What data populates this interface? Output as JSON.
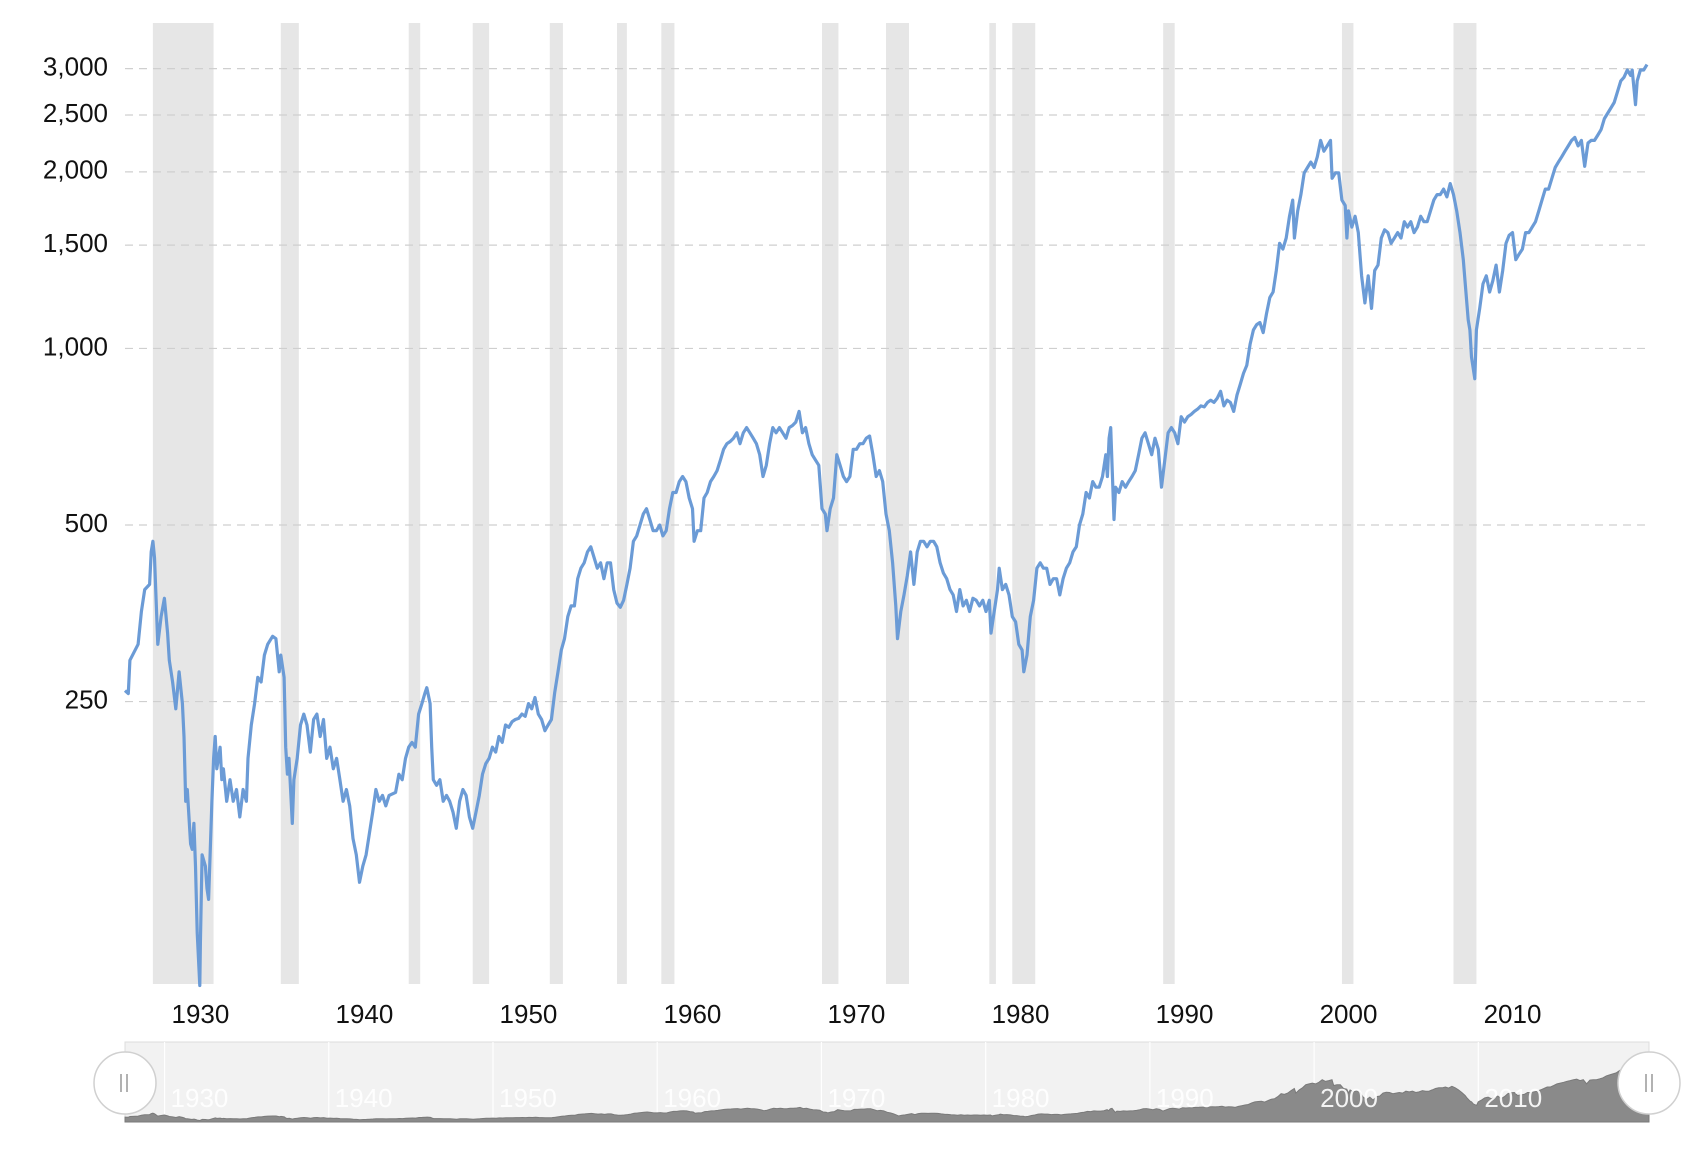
{
  "chart_data": {
    "type": "line",
    "log_scale": true,
    "grid": true,
    "color": "#6b9bd6",
    "xlim": [
      1925.4,
      2018.2
    ],
    "xticks": [
      1930,
      1940,
      1950,
      1960,
      1970,
      1980,
      1990,
      2000,
      2010
    ],
    "ylim": [
      82.5,
      3317
    ],
    "yticks": [
      250,
      500,
      {
        "value": 1000,
        "label": "1,000"
      },
      {
        "value": 1500,
        "label": "1,500"
      },
      {
        "value": 2000,
        "label": "2,000"
      },
      {
        "value": 2500,
        "label": "2,500"
      },
      {
        "value": 3000,
        "label": "3,000"
      }
    ],
    "bands": [
      [
        1927.1,
        1930.8
      ],
      [
        1934.9,
        1936.0
      ],
      [
        1942.7,
        1943.4
      ],
      [
        1946.6,
        1947.6
      ],
      [
        1951.3,
        1952.1
      ],
      [
        1955.4,
        1956.0
      ],
      [
        1958.1,
        1958.9
      ],
      [
        1967.9,
        1968.9
      ],
      [
        1971.8,
        1973.2
      ],
      [
        1978.1,
        1978.5
      ],
      [
        1979.5,
        1980.9
      ],
      [
        1988.7,
        1989.4
      ],
      [
        1999.6,
        2000.3
      ],
      [
        2006.4,
        2007.8
      ]
    ],
    "x": [
      1925.4,
      1925.6,
      1925.7,
      1926.2,
      1926.4,
      1926.6,
      1926.9,
      1927.0,
      1927.1,
      1927.2,
      1927.4,
      1927.6,
      1927.8,
      1928.0,
      1928.1,
      1928.3,
      1928.5,
      1928.7,
      1928.9,
      1929.0,
      1929.1,
      1929.2,
      1929.4,
      1929.5,
      1929.6,
      1929.7,
      1929.8,
      1929.96,
      1930.0,
      1930.1,
      1930.3,
      1930.4,
      1930.5,
      1930.7,
      1930.8,
      1930.9,
      1931.0,
      1931.2,
      1931.3,
      1931.4,
      1931.6,
      1931.8,
      1932.0,
      1932.2,
      1932.4,
      1932.6,
      1932.8,
      1932.9,
      1933.1,
      1933.3,
      1933.5,
      1933.7,
      1933.9,
      1934.1,
      1934.4,
      1934.6,
      1934.8,
      1934.9,
      1935.1,
      1935.2,
      1935.3,
      1935.4,
      1935.6,
      1935.7,
      1935.9,
      1936.1,
      1936.3,
      1936.5,
      1936.7,
      1936.9,
      1937.1,
      1937.3,
      1937.5,
      1937.7,
      1937.9,
      1938.1,
      1938.3,
      1938.5,
      1938.7,
      1938.9,
      1939.1,
      1939.3,
      1939.5,
      1939.7,
      1939.9,
      1940.1,
      1940.3,
      1940.5,
      1940.7,
      1940.9,
      1941.1,
      1941.3,
      1941.5,
      1941.9,
      1942.1,
      1942.3,
      1942.5,
      1942.7,
      1942.9,
      1943.1,
      1943.3,
      1943.5,
      1943.7,
      1943.8,
      1944.0,
      1944.1,
      1944.2,
      1944.4,
      1944.6,
      1944.8,
      1945.0,
      1945.2,
      1945.4,
      1945.6,
      1945.8,
      1946.0,
      1946.2,
      1946.4,
      1946.6,
      1946.8,
      1947.0,
      1947.2,
      1947.4,
      1947.6,
      1947.8,
      1948.0,
      1948.2,
      1948.4,
      1948.6,
      1948.8,
      1949.0,
      1949.2,
      1949.4,
      1949.6,
      1949.8,
      1950.0,
      1950.2,
      1950.4,
      1950.6,
      1950.8,
      1951.0,
      1951.2,
      1951.4,
      1951.6,
      1951.8,
      1952.0,
      1952.2,
      1952.4,
      1952.6,
      1952.8,
      1953.0,
      1953.2,
      1953.4,
      1953.6,
      1953.8,
      1954.0,
      1954.2,
      1954.4,
      1954.6,
      1954.8,
      1955.0,
      1955.2,
      1955.4,
      1955.6,
      1955.8,
      1956.0,
      1956.2,
      1956.4,
      1956.6,
      1956.8,
      1957.0,
      1957.2,
      1957.4,
      1957.6,
      1957.8,
      1958.0,
      1958.2,
      1958.4,
      1958.6,
      1958.8,
      1959.0,
      1959.2,
      1959.4,
      1959.6,
      1959.8,
      1960.0,
      1960.1,
      1960.3,
      1960.5,
      1960.7,
      1960.9,
      1961.1,
      1961.3,
      1961.5,
      1961.7,
      1961.9,
      1962.1,
      1962.3,
      1962.5,
      1962.7,
      1962.9,
      1963.1,
      1963.3,
      1963.5,
      1963.7,
      1963.9,
      1964.1,
      1964.3,
      1964.5,
      1964.7,
      1964.9,
      1965.1,
      1965.3,
      1965.5,
      1965.7,
      1965.9,
      1966.1,
      1966.3,
      1966.5,
      1966.7,
      1966.9,
      1967.1,
      1967.3,
      1967.5,
      1967.7,
      1967.9,
      1968.1,
      1968.2,
      1968.4,
      1968.6,
      1968.8,
      1969.0,
      1969.2,
      1969.4,
      1969.6,
      1969.8,
      1970.0,
      1970.2,
      1970.4,
      1970.6,
      1970.8,
      1971.0,
      1971.2,
      1971.4,
      1971.6,
      1971.8,
      1972.0,
      1972.2,
      1972.4,
      1972.5,
      1972.7,
      1972.9,
      1973.1,
      1973.3,
      1973.5,
      1973.7,
      1973.9,
      1974.1,
      1974.3,
      1974.5,
      1974.7,
      1974.9,
      1975.1,
      1975.3,
      1975.5,
      1975.7,
      1975.9,
      1976.1,
      1976.3,
      1976.5,
      1976.7,
      1976.9,
      1977.1,
      1977.3,
      1977.5,
      1977.7,
      1977.9,
      1978.1,
      1978.2,
      1978.4,
      1978.6,
      1978.7,
      1978.9,
      1979.1,
      1979.3,
      1979.5,
      1979.7,
      1979.9,
      1980.1,
      1980.2,
      1980.4,
      1980.6,
      1980.8,
      1981.0,
      1981.2,
      1981.4,
      1981.6,
      1981.8,
      1982.0,
      1982.2,
      1982.4,
      1982.6,
      1982.8,
      1983.0,
      1983.2,
      1983.4,
      1983.6,
      1983.8,
      1984.0,
      1984.2,
      1984.4,
      1984.6,
      1984.8,
      1985.0,
      1985.2,
      1985.3,
      1985.4,
      1985.5,
      1985.7,
      1985.8,
      1986.0,
      1986.2,
      1986.4,
      1986.6,
      1986.8,
      1987.0,
      1987.2,
      1987.4,
      1987.6,
      1987.8,
      1988.0,
      1988.2,
      1988.4,
      1988.6,
      1988.8,
      1989.0,
      1989.2,
      1989.4,
      1989.6,
      1989.8,
      1990.0,
      1990.2,
      1990.4,
      1990.6,
      1990.8,
      1991.0,
      1991.2,
      1991.4,
      1991.6,
      1991.8,
      1992.0,
      1992.2,
      1992.4,
      1992.6,
      1992.8,
      1993.0,
      1993.2,
      1993.4,
      1993.6,
      1993.8,
      1994.0,
      1994.2,
      1994.4,
      1994.6,
      1994.8,
      1995.0,
      1995.2,
      1995.4,
      1995.6,
      1995.8,
      1996.0,
      1996.2,
      1996.4,
      1996.6,
      1996.7,
      1996.9,
      1997.1,
      1997.3,
      1997.5,
      1997.7,
      1997.9,
      1998.1,
      1998.3,
      1998.5,
      1998.7,
      1998.9,
      1999.0,
      1999.2,
      1999.4,
      1999.6,
      1999.8,
      1999.9,
      2000.0,
      2000.2,
      2000.4,
      2000.6,
      2000.8,
      2001.0,
      2001.2,
      2001.4,
      2001.6,
      2001.8,
      2002.0,
      2002.2,
      2002.4,
      2002.6,
      2002.8,
      2003.0,
      2003.2,
      2003.4,
      2003.6,
      2003.8,
      2004.0,
      2004.2,
      2004.4,
      2004.6,
      2004.8,
      2005.0,
      2005.2,
      2005.4,
      2005.6,
      2005.8,
      2006.0,
      2006.2,
      2006.4,
      2006.6,
      2006.8,
      2007.0,
      2007.1,
      2007.3,
      2007.4,
      2007.5,
      2007.7,
      2007.8,
      2008.0,
      2008.2,
      2008.4,
      2008.6,
      2008.8,
      2009.0,
      2009.2,
      2009.4,
      2009.6,
      2009.8,
      2010.0,
      2010.2,
      2010.4,
      2010.6,
      2010.8,
      2011.0,
      2011.2,
      2011.4,
      2011.6,
      2011.8,
      2012.0,
      2012.2,
      2012.4,
      2012.6,
      2012.8,
      2013.0,
      2013.2,
      2013.4,
      2013.6,
      2013.8,
      2014.0,
      2014.2,
      2014.4,
      2014.6,
      2014.8,
      2015.0,
      2015.2,
      2015.4,
      2015.6,
      2015.8,
      2016.0,
      2016.2,
      2016.4,
      2016.6,
      2016.8,
      2017.0,
      2017.2,
      2017.3,
      2017.5,
      2017.6,
      2017.8,
      2018.0,
      2018.2
    ],
    "values": [
      261,
      258,
      294,
      313,
      356,
      388,
      396,
      450,
      469,
      440,
      313,
      349,
      375,
      327,
      294,
      270,
      243,
      281,
      248,
      218,
      169,
      177,
      143,
      140,
      155,
      131,
      101,
      82,
      97,
      137,
      131,
      120,
      115,
      169,
      200,
      218,
      192,
      209,
      184,
      192,
      169,
      184,
      169,
      177,
      159,
      177,
      169,
      200,
      228,
      248,
      275,
      270,
      300,
      313,
      323,
      320,
      281,
      300,
      275,
      209,
      188,
      200,
      155,
      184,
      200,
      228,
      238,
      228,
      205,
      233,
      238,
      218,
      233,
      200,
      209,
      192,
      200,
      184,
      169,
      177,
      166,
      146,
      137,
      123,
      131,
      137,
      149,
      162,
      177,
      169,
      173,
      166,
      173,
      175,
      188,
      184,
      200,
      209,
      213,
      209,
      238,
      248,
      259,
      264,
      248,
      209,
      184,
      180,
      184,
      169,
      173,
      169,
      162,
      152,
      169,
      177,
      173,
      159,
      152,
      162,
      173,
      188,
      196,
      200,
      209,
      205,
      218,
      213,
      228,
      226,
      231,
      233,
      234,
      238,
      236,
      248,
      243,
      254,
      238,
      233,
      223,
      228,
      233,
      259,
      281,
      306,
      320,
      349,
      364,
      364,
      405,
      422,
      431,
      450,
      459,
      440,
      422,
      431,
      405,
      431,
      431,
      388,
      368,
      362,
      372,
      396,
      422,
      469,
      479,
      500,
      522,
      533,
      511,
      489,
      489,
      500,
      479,
      489,
      533,
      568,
      568,
      593,
      605,
      593,
      556,
      533,
      469,
      489,
      489,
      556,
      568,
      593,
      605,
      619,
      645,
      673,
      688,
      694,
      703,
      718,
      688,
      718,
      733,
      718,
      703,
      688,
      659,
      605,
      632,
      688,
      733,
      718,
      733,
      718,
      703,
      733,
      739,
      749,
      781,
      718,
      733,
      688,
      659,
      645,
      632,
      533,
      522,
      489,
      533,
      556,
      659,
      632,
      605,
      593,
      605,
      673,
      673,
      688,
      688,
      703,
      709,
      659,
      605,
      619,
      593,
      522,
      489,
      431,
      364,
      320,
      356,
      380,
      410,
      450,
      396,
      450,
      469,
      469,
      459,
      469,
      469,
      459,
      431,
      414,
      405,
      388,
      380,
      356,
      388,
      364,
      372,
      356,
      375,
      372,
      364,
      372,
      356,
      372,
      327,
      356,
      388,
      422,
      388,
      396,
      380,
      349,
      342,
      313,
      306,
      281,
      300,
      349,
      372,
      422,
      431,
      422,
      422,
      396,
      405,
      405,
      380,
      405,
      422,
      431,
      450,
      459,
      500,
      522,
      568,
      556,
      593,
      580,
      580,
      605,
      659,
      605,
      703,
      733,
      511,
      580,
      568,
      593,
      580,
      593,
      605,
      619,
      659,
      703,
      718,
      688,
      659,
      703,
      673,
      580,
      645,
      718,
      733,
      718,
      688,
      765,
      749,
      765,
      772,
      781,
      788,
      798,
      795,
      809,
      816,
      809,
      823,
      845,
      798,
      816,
      809,
      781,
      833,
      869,
      907,
      936,
      1017,
      1075,
      1098,
      1107,
      1064,
      1146,
      1221,
      1248,
      1358,
      1511,
      1477,
      1543,
      1680,
      1790,
      1543,
      1716,
      1829,
      1992,
      2035,
      2078,
      2035,
      2122,
      2263,
      2169,
      2215,
      2263,
      1950,
      1992,
      1992,
      1790,
      1753,
      1543,
      1716,
      1610,
      1680,
      1576,
      1330,
      1196,
      1330,
      1170,
      1358,
      1387,
      1543,
      1593,
      1576,
      1511,
      1543,
      1576,
      1543,
      1645,
      1610,
      1645,
      1576,
      1610,
      1680,
      1645,
      1645,
      1716,
      1790,
      1829,
      1829,
      1869,
      1813,
      1910,
      1829,
      1716,
      1576,
      1417,
      1304,
      1119,
      1075,
      967,
      888,
      1075,
      1170,
      1289,
      1330,
      1248,
      1304,
      1387,
      1248,
      1358,
      1511,
      1560,
      1576,
      1417,
      1448,
      1477,
      1576,
      1576,
      1610,
      1645,
      1716,
      1790,
      1869,
      1869,
      1950,
      2035,
      2078,
      2122,
      2169,
      2215,
      2263,
      2290,
      2215,
      2263,
      2044,
      2240,
      2263,
      2263,
      2311,
      2361,
      2465,
      2516,
      2570,
      2626,
      2740,
      2858,
      2899,
      2983,
      2921,
      2983,
      2605,
      2858,
      2983,
      2983,
      3047
    ]
  }
}
